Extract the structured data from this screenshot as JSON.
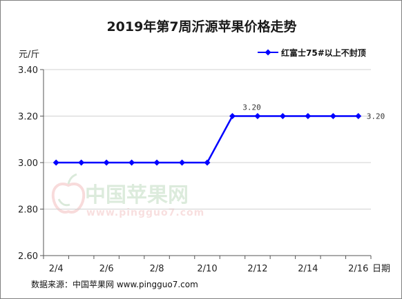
{
  "chart_data": {
    "type": "line",
    "title": "2019年第7周沂源苹果价格走势",
    "ylabel": "元/斤",
    "xlabel": "日期",
    "ylim": [
      2.6,
      3.4
    ],
    "yticks": [
      "3.40",
      "3.20",
      "3.00",
      "2.80",
      "2.60"
    ],
    "x": [
      "2/4",
      "2/5",
      "2/6",
      "2/7",
      "2/8",
      "2/9",
      "2/10",
      "2/11",
      "2/12",
      "2/13",
      "2/14",
      "2/15",
      "2/16"
    ],
    "xtick_labels": [
      "2/4",
      "2/6",
      "2/8",
      "2/10",
      "2/12",
      "2/14",
      "2/16"
    ],
    "series": [
      {
        "name": "红富士75#以上不封顶",
        "color": "#0000ff",
        "values": [
          3.0,
          3.0,
          3.0,
          3.0,
          3.0,
          3.0,
          3.0,
          3.2,
          3.2,
          3.2,
          3.2,
          3.2,
          3.2
        ]
      }
    ],
    "data_labels": [
      {
        "index": 7,
        "text": "3.20"
      },
      {
        "index": 12,
        "text": "3.20"
      }
    ],
    "legend_position": "top-right",
    "grid": "horizontal"
  },
  "watermark": {
    "text_cn": "中国苹果网",
    "text_url": "www.pingguo7.com"
  },
  "source_note": "数据来源：中国苹果网 www.pingguo7.com"
}
